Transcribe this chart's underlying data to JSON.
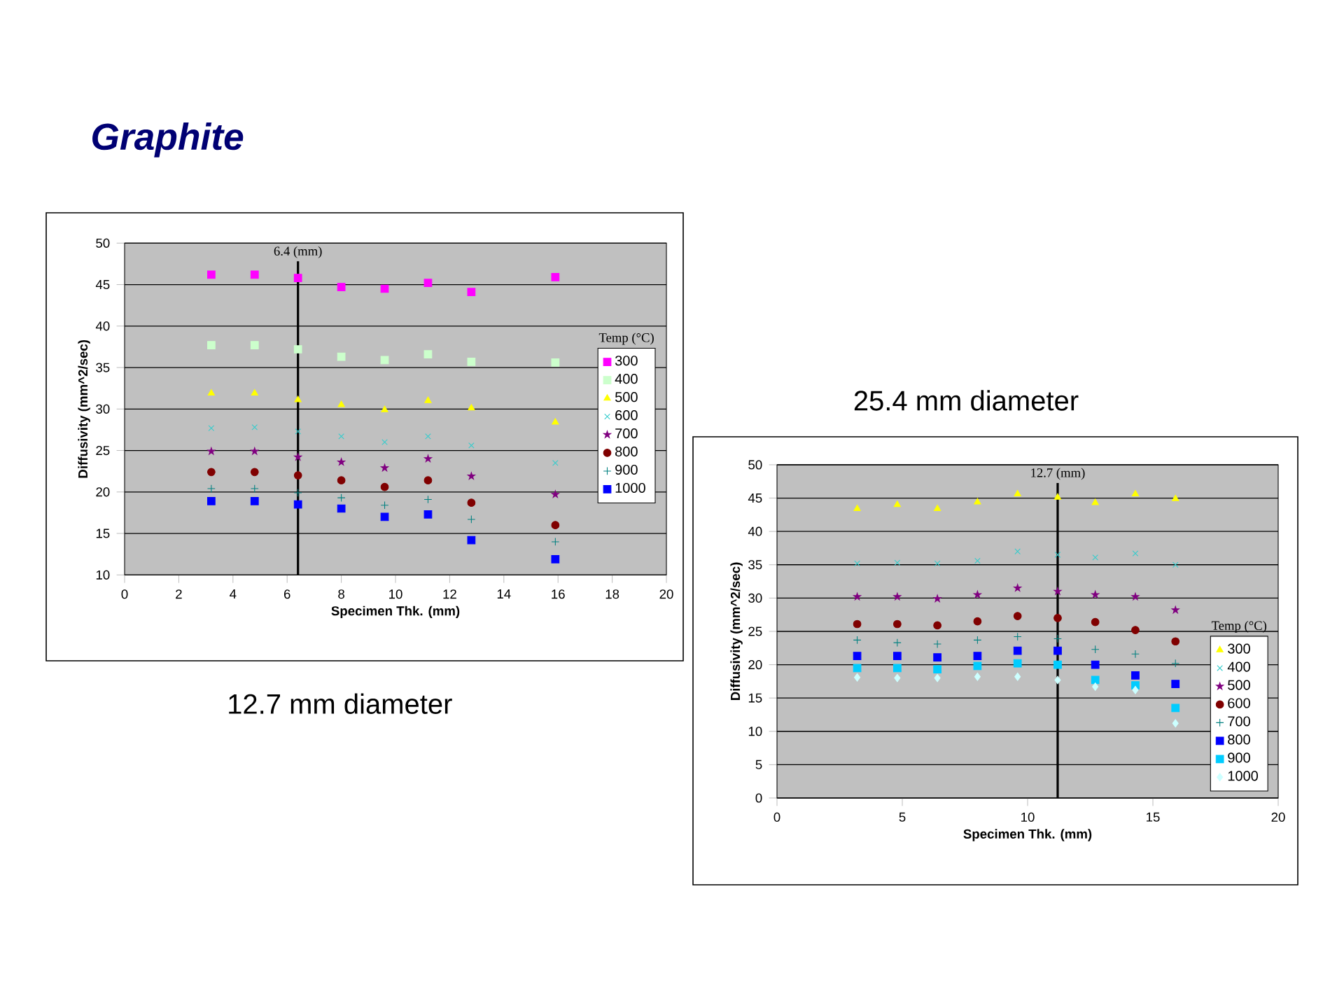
{
  "chart_data": [
    {
      "type": "scatter",
      "title": "Graphite",
      "subtitle": "12.7 mm diameter",
      "xlabel": "Specimen Thk. (mm)",
      "ylabel": "Diffusivity (mm^2/sec)",
      "legend_title": "Temp (°C)",
      "legend": "right",
      "grid": "y",
      "xlim": [
        0,
        20
      ],
      "ylim": [
        10,
        50
      ],
      "xticks": [
        0,
        2,
        4,
        6,
        8,
        10,
        12,
        14,
        16,
        18,
        20
      ],
      "yticks": [
        10,
        15,
        20,
        25,
        30,
        35,
        40,
        45,
        50
      ],
      "x": [
        3.2,
        4.8,
        6.4,
        8.0,
        9.6,
        11.2,
        12.8,
        15.9
      ],
      "ref_lines": [
        {
          "axis": "x",
          "value": 6.4,
          "label": "6.4 (mm)",
          "color": "#000000"
        }
      ],
      "series": [
        {
          "name": "300",
          "color": "#ff00ff",
          "marker": "square",
          "values": [
            46.2,
            46.2,
            45.8,
            44.7,
            44.5,
            45.2,
            44.1,
            45.9
          ]
        },
        {
          "name": "400",
          "color": "#ccffcc",
          "marker": "square",
          "values": [
            37.7,
            37.7,
            37.2,
            36.3,
            35.9,
            36.6,
            35.7,
            35.6
          ]
        },
        {
          "name": "500",
          "color": "#ffff00",
          "marker": "triangle",
          "values": [
            31.9,
            31.9,
            31.1,
            30.5,
            29.9,
            31.0,
            30.1,
            28.4
          ]
        },
        {
          "name": "600",
          "color": "#33cccc",
          "marker": "cross",
          "values": [
            27.7,
            27.8,
            27.3,
            26.7,
            26.0,
            26.7,
            25.6,
            23.5
          ]
        },
        {
          "name": "700",
          "color": "#800080",
          "marker": "star",
          "values": [
            24.9,
            24.9,
            24.2,
            23.6,
            22.9,
            24.0,
            21.9,
            19.7
          ]
        },
        {
          "name": "800",
          "color": "#800000",
          "marker": "circle",
          "values": [
            22.4,
            22.4,
            22.0,
            21.4,
            20.6,
            21.4,
            18.7,
            16.0
          ]
        },
        {
          "name": "900",
          "color": "#008080",
          "marker": "plus",
          "values": [
            20.4,
            20.4,
            19.9,
            19.3,
            18.4,
            19.1,
            16.7,
            14.0
          ]
        },
        {
          "name": "1000",
          "color": "#0000ff",
          "marker": "square",
          "values": [
            18.9,
            18.9,
            18.5,
            18.0,
            17.0,
            17.3,
            14.2,
            11.9
          ]
        }
      ]
    },
    {
      "type": "scatter",
      "subtitle": "25.4 mm diameter",
      "xlabel": "Specimen Thk. (mm)",
      "ylabel": "Diffusivity (mm^2/sec)",
      "legend_title": "Temp (°C)",
      "grid": "y",
      "xlim": [
        0,
        20
      ],
      "ylim": [
        0,
        50
      ],
      "xticks": [
        0,
        5,
        10,
        15,
        20
      ],
      "yticks": [
        0,
        5,
        10,
        15,
        20,
        25,
        30,
        35,
        40,
        45,
        50
      ],
      "legend": "bottom right",
      "x": [
        3.2,
        4.8,
        6.4,
        8.0,
        9.6,
        11.2,
        12.7,
        14.3,
        15.9
      ],
      "ref_lines": [
        {
          "axis": "x",
          "value": 11.2,
          "label": "12.7 (mm)",
          "color": "#000000"
        }
      ],
      "series": [
        {
          "name": "300",
          "color": "#ffff00",
          "marker": "triangle",
          "values": [
            43.4,
            44.0,
            43.4,
            44.4,
            45.6,
            45.1,
            44.3,
            45.6,
            44.9
          ]
        },
        {
          "name": "400",
          "color": "#33cccc",
          "marker": "cross",
          "values": [
            35.2,
            35.3,
            35.2,
            35.6,
            37.0,
            36.5,
            36.1,
            36.7,
            35.0
          ]
        },
        {
          "name": "500",
          "color": "#800080",
          "marker": "star",
          "values": [
            30.2,
            30.2,
            29.9,
            30.5,
            31.5,
            31.0,
            30.5,
            30.2,
            28.2
          ]
        },
        {
          "name": "600",
          "color": "#800000",
          "marker": "circle",
          "values": [
            26.1,
            26.1,
            25.9,
            26.5,
            27.3,
            27.0,
            26.4,
            25.2,
            23.5
          ]
        },
        {
          "name": "700",
          "color": "#008080",
          "marker": "plus",
          "values": [
            23.7,
            23.3,
            23.1,
            23.7,
            24.2,
            23.9,
            22.3,
            21.6,
            20.2
          ]
        },
        {
          "name": "800",
          "color": "#0000ff",
          "marker": "square",
          "values": [
            21.3,
            21.3,
            21.1,
            21.3,
            22.1,
            22.1,
            20.0,
            18.4,
            17.1
          ]
        },
        {
          "name": "900",
          "color": "#00ccff",
          "marker": "square",
          "values": [
            19.5,
            19.5,
            19.3,
            19.8,
            20.2,
            20.0,
            17.7,
            16.9,
            13.5
          ]
        },
        {
          "name": "1000",
          "color": "#ccffff",
          "marker": "diamond",
          "values": [
            18.1,
            18.0,
            18.0,
            18.2,
            18.2,
            17.7,
            16.7,
            16.2,
            11.2
          ]
        }
      ]
    }
  ]
}
